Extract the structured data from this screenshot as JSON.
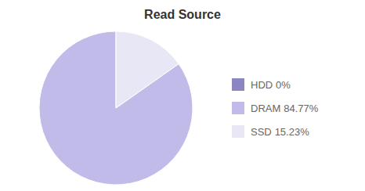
{
  "chart_data": {
    "type": "pie",
    "title": "Read Source",
    "categories": [
      "HDD",
      "DRAM",
      "SSD"
    ],
    "values": [
      0.0001,
      84.77,
      15.23
    ],
    "value_labels": [
      "0%",
      "84.77%",
      "15.23%"
    ],
    "colors": [
      "#8B85C1",
      "#C0BBE8",
      "#E8E7F5"
    ],
    "legend": "right"
  }
}
